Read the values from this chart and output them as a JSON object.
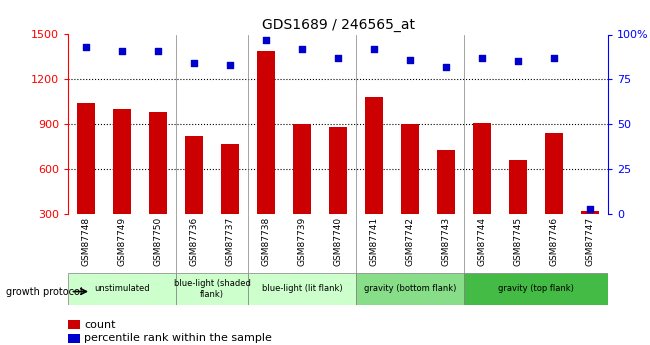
{
  "title": "GDS1689 / 246565_at",
  "samples": [
    "GSM87748",
    "GSM87749",
    "GSM87750",
    "GSM87736",
    "GSM87737",
    "GSM87738",
    "GSM87739",
    "GSM87740",
    "GSM87741",
    "GSM87742",
    "GSM87743",
    "GSM87744",
    "GSM87745",
    "GSM87746",
    "GSM87747"
  ],
  "counts": [
    1040,
    1000,
    980,
    820,
    770,
    1390,
    900,
    880,
    1080,
    900,
    730,
    910,
    660,
    840,
    320
  ],
  "percentiles": [
    93,
    91,
    91,
    84,
    83,
    97,
    92,
    87,
    92,
    86,
    82,
    87,
    85,
    87,
    3
  ],
  "ylim_left": [
    300,
    1500
  ],
  "ylim_right": [
    0,
    100
  ],
  "yticks_left": [
    300,
    600,
    900,
    1200,
    1500
  ],
  "yticks_right": [
    0,
    25,
    50,
    75,
    100
  ],
  "ytick_labels_right": [
    "0",
    "25",
    "50",
    "75",
    "100%"
  ],
  "bar_color": "#cc0000",
  "dot_color": "#0000cc",
  "groups": [
    {
      "label": "unstimulated",
      "start": 0,
      "end": 3,
      "color": "#ccffcc"
    },
    {
      "label": "blue-light (shaded\nflank)",
      "start": 3,
      "end": 5,
      "color": "#ccffcc"
    },
    {
      "label": "blue-light (lit flank)",
      "start": 5,
      "end": 8,
      "color": "#ccffcc"
    },
    {
      "label": "gravity (bottom flank)",
      "start": 8,
      "end": 11,
      "color": "#88dd88"
    },
    {
      "label": "gravity (top flank)",
      "start": 11,
      "end": 15,
      "color": "#44bb44"
    }
  ],
  "group_dividers": [
    3,
    5,
    8,
    11
  ],
  "xlabel_protocol": "growth protocol",
  "legend_count": "count",
  "legend_pct": "percentile rank within the sample"
}
